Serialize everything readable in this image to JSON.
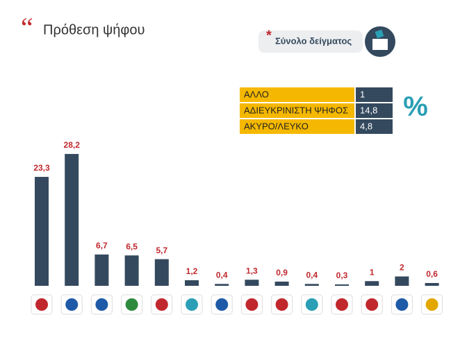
{
  "header": {
    "title": "Πρόθεση ψήφου",
    "sample": "Σύνολο δείγματος"
  },
  "table": {
    "rows": [
      [
        "ΑΛΛΟ",
        "1"
      ],
      [
        "ΑΔΙΕΥΚΡΙΝΙΣΤΗ ΨΗΦΟΣ",
        "14,8"
      ],
      [
        "ΑΚΥΡΟ/ΛΕΥΚΟ",
        "4,8"
      ]
    ],
    "unit": "%"
  },
  "chart_data": {
    "type": "bar",
    "color": "#34495e",
    "label_color": "#c0282d",
    "categories": [
      null,
      null,
      null,
      null,
      null,
      null,
      null,
      null,
      null,
      null,
      null,
      null,
      null,
      null
    ],
    "values": [
      23.3,
      28.2,
      6.7,
      6.5,
      5.7,
      1.2,
      0.4,
      1.3,
      0.9,
      0.4,
      0.3,
      1,
      2,
      0.6
    ],
    "value_labels": [
      "23,3",
      "28,2",
      "6,7",
      "6,5",
      "5,7",
      "1,2",
      "0,4",
      "1,3",
      "0,9",
      "0,4",
      "0,3",
      "1",
      "2",
      "0,6"
    ]
  }
}
